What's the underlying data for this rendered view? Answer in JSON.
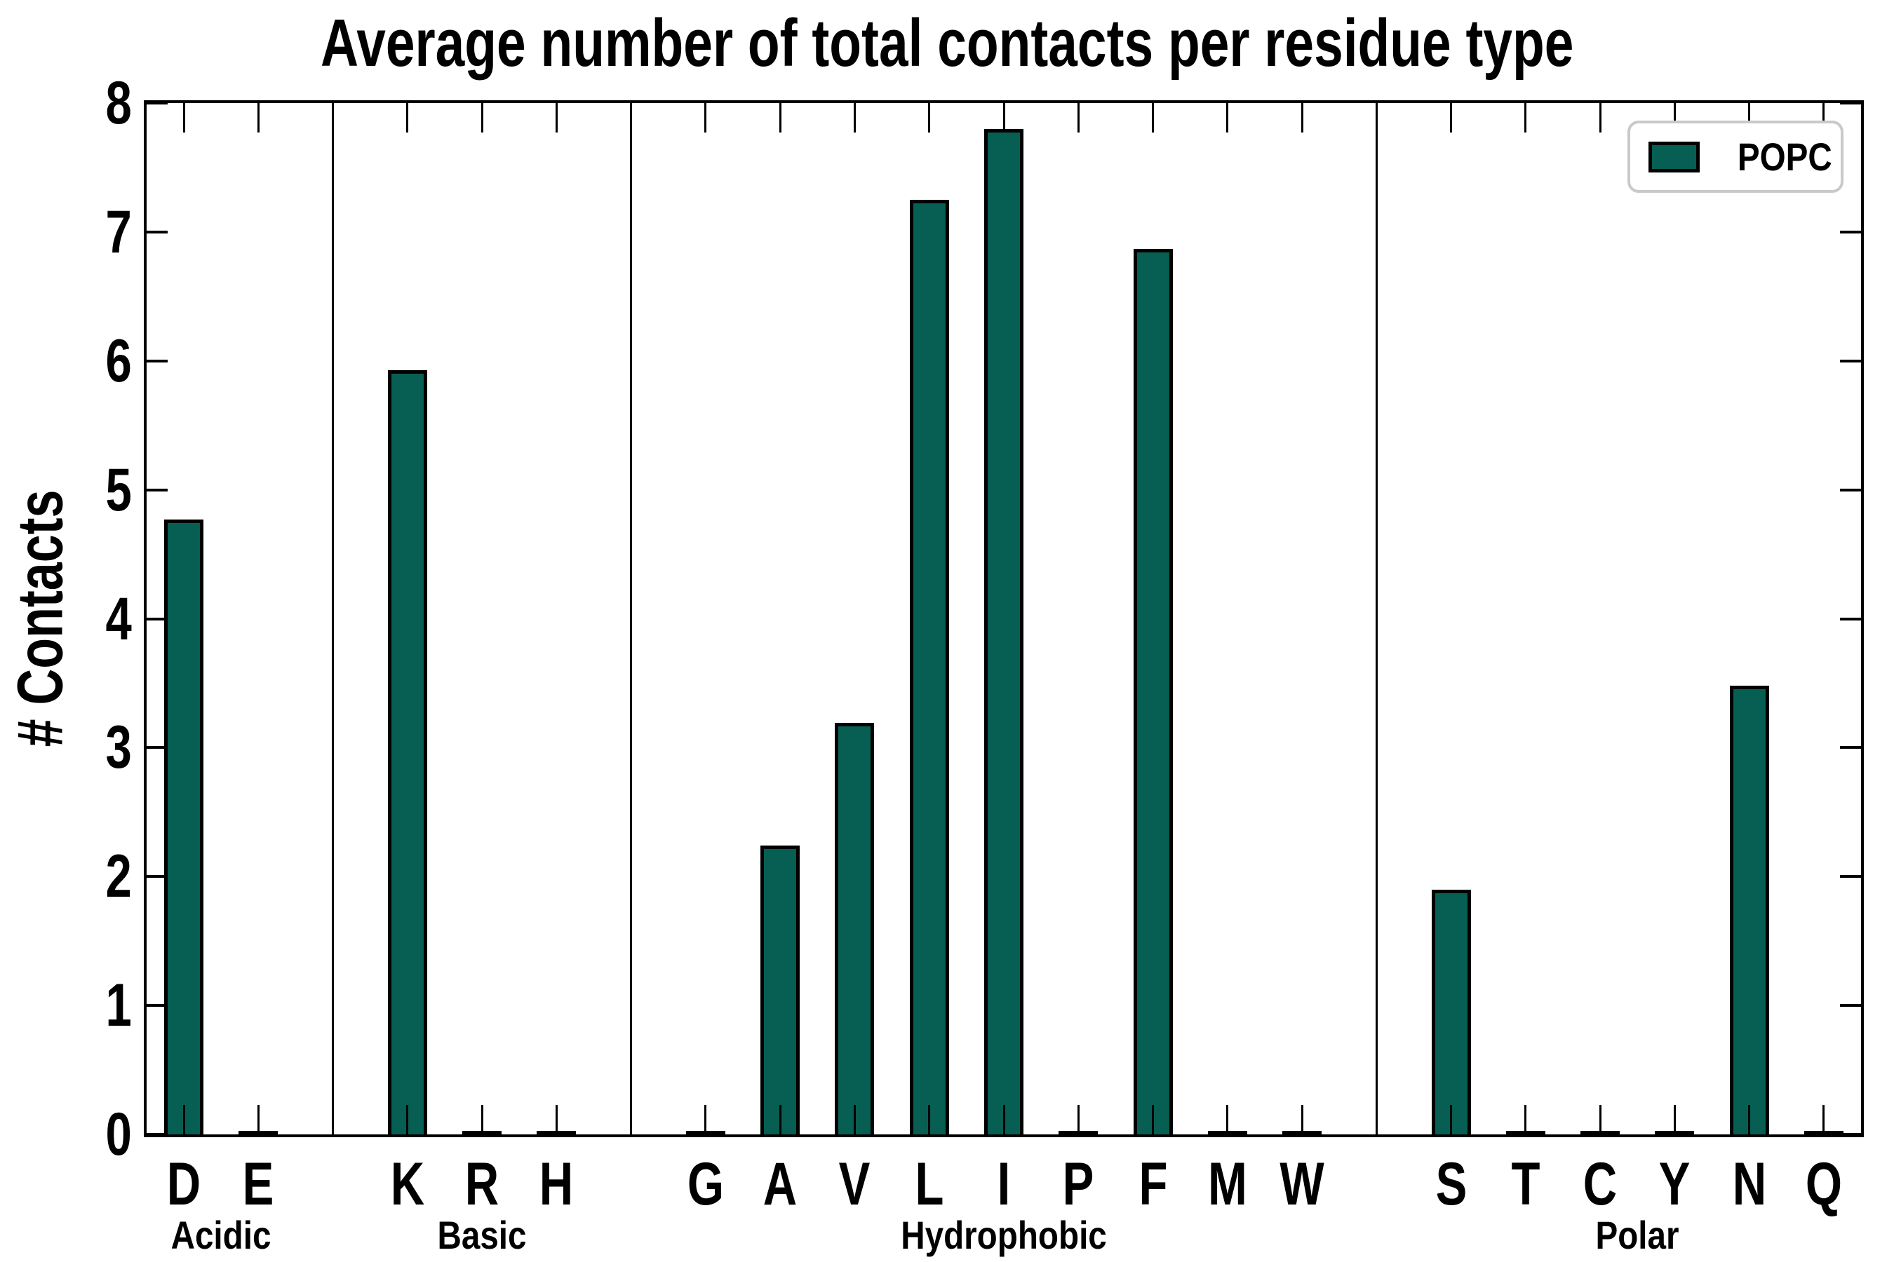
{
  "chart_data": {
    "type": "bar",
    "title": "Average number of total contacts per residue type",
    "xlabel": "",
    "ylabel": "# Contacts",
    "ylim": [
      0,
      8
    ],
    "yticks": [
      0,
      1,
      2,
      3,
      4,
      5,
      6,
      7,
      8
    ],
    "grid": false,
    "legend": {
      "label": "POPC",
      "position": "upper right"
    },
    "colors": {
      "bar_fill": "#075e52",
      "bar_edge": "#000000",
      "axis": "#000000",
      "legend_border": "#c9c9c9",
      "background": "#ffffff"
    },
    "groups": [
      {
        "label": "Acidic",
        "residues": [
          "D",
          "E"
        ],
        "values": [
          4.77,
          0
        ]
      },
      {
        "label": "Basic",
        "residues": [
          "K",
          "R",
          "H"
        ],
        "values": [
          5.93,
          0,
          0
        ]
      },
      {
        "label": "Hydrophobic",
        "residues": [
          "G",
          "A",
          "V",
          "L",
          "I",
          "P",
          "F",
          "M",
          "W"
        ],
        "values": [
          0,
          2.24,
          3.19,
          7.25,
          7.8,
          0,
          6.87,
          0,
          0
        ]
      },
      {
        "label": "Polar",
        "residues": [
          "S",
          "T",
          "C",
          "Y",
          "N",
          "Q"
        ],
        "values": [
          1.9,
          0,
          0,
          0,
          3.48,
          0
        ]
      }
    ]
  }
}
